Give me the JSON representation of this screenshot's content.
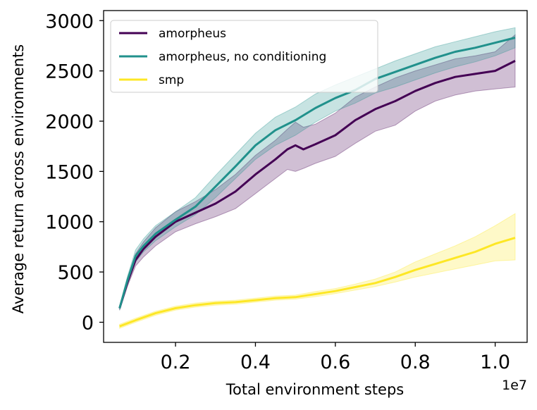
{
  "chart_data": {
    "type": "line",
    "title": "",
    "xlabel": "Total environment steps",
    "ylabel": "Average return across environments",
    "x_exponent_label": "1e7",
    "xlim": [
      0.02,
      1.08
    ],
    "ylim": [
      -200,
      3100
    ],
    "xticks": [
      0.2,
      0.4,
      0.6,
      0.8,
      1.0
    ],
    "xtick_labels": [
      "0.2",
      "0.4",
      "0.6",
      "0.8",
      "1.0"
    ],
    "yticks": [
      0,
      500,
      1000,
      1500,
      2000,
      2500,
      3000
    ],
    "ytick_labels": [
      "0",
      "500",
      "1000",
      "1500",
      "2000",
      "2500",
      "3000"
    ],
    "legend_position": "top-left",
    "series": [
      {
        "name": "amorpheus",
        "color": "#440154",
        "x": [
          0.06,
          0.08,
          0.1,
          0.12,
          0.15,
          0.2,
          0.25,
          0.3,
          0.35,
          0.4,
          0.45,
          0.48,
          0.5,
          0.52,
          0.55,
          0.6,
          0.65,
          0.7,
          0.75,
          0.8,
          0.85,
          0.9,
          0.95,
          1.0,
          1.05
        ],
        "values": [
          140,
          400,
          620,
          730,
          850,
          1000,
          1090,
          1180,
          1300,
          1470,
          1620,
          1720,
          1760,
          1720,
          1770,
          1860,
          2010,
          2120,
          2200,
          2300,
          2380,
          2440,
          2470,
          2500,
          2600
        ],
        "band_low": [
          120,
          360,
          560,
          650,
          760,
          900,
          980,
          1050,
          1130,
          1280,
          1430,
          1520,
          1500,
          1530,
          1580,
          1650,
          1780,
          1900,
          1960,
          2100,
          2200,
          2260,
          2300,
          2320,
          2340
        ],
        "band_high": [
          160,
          440,
          680,
          800,
          940,
          1100,
          1200,
          1320,
          1470,
          1660,
          1810,
          1920,
          1990,
          1940,
          1970,
          2080,
          2240,
          2340,
          2430,
          2500,
          2560,
          2620,
          2650,
          2690,
          2860
        ]
      },
      {
        "name": "amorpheus, no conditioning",
        "color": "#21918c",
        "x": [
          0.06,
          0.08,
          0.1,
          0.12,
          0.15,
          0.2,
          0.25,
          0.3,
          0.35,
          0.4,
          0.45,
          0.5,
          0.55,
          0.6,
          0.65,
          0.7,
          0.75,
          0.8,
          0.85,
          0.9,
          0.95,
          1.0,
          1.05
        ],
        "values": [
          140,
          420,
          660,
          760,
          880,
          1020,
          1150,
          1350,
          1550,
          1760,
          1910,
          2010,
          2130,
          2230,
          2310,
          2420,
          2490,
          2560,
          2630,
          2690,
          2730,
          2780,
          2830
        ],
        "band_low": [
          120,
          380,
          600,
          700,
          810,
          950,
          1070,
          1240,
          1430,
          1620,
          1760,
          1860,
          1990,
          2100,
          2180,
          2280,
          2340,
          2410,
          2480,
          2540,
          2590,
          2650,
          2730
        ],
        "band_high": [
          160,
          460,
          720,
          830,
          960,
          1100,
          1240,
          1460,
          1670,
          1880,
          2040,
          2140,
          2270,
          2360,
          2440,
          2520,
          2600,
          2670,
          2740,
          2790,
          2840,
          2890,
          2930
        ]
      },
      {
        "name": "smp",
        "color": "#fde725",
        "x": [
          0.06,
          0.1,
          0.15,
          0.2,
          0.25,
          0.3,
          0.35,
          0.4,
          0.45,
          0.5,
          0.55,
          0.6,
          0.65,
          0.7,
          0.75,
          0.8,
          0.85,
          0.9,
          0.95,
          1.0,
          1.05
        ],
        "values": [
          -40,
          20,
          90,
          140,
          170,
          190,
          200,
          220,
          240,
          250,
          280,
          310,
          350,
          390,
          450,
          520,
          580,
          640,
          700,
          780,
          840
        ],
        "band_low": [
          -60,
          0,
          70,
          120,
          150,
          170,
          180,
          200,
          220,
          230,
          255,
          285,
          320,
          355,
          400,
          450,
          490,
          530,
          570,
          610,
          620
        ],
        "band_high": [
          -20,
          40,
          110,
          160,
          190,
          210,
          220,
          240,
          260,
          270,
          305,
          335,
          380,
          430,
          500,
          600,
          680,
          760,
          850,
          960,
          1080
        ]
      }
    ]
  }
}
